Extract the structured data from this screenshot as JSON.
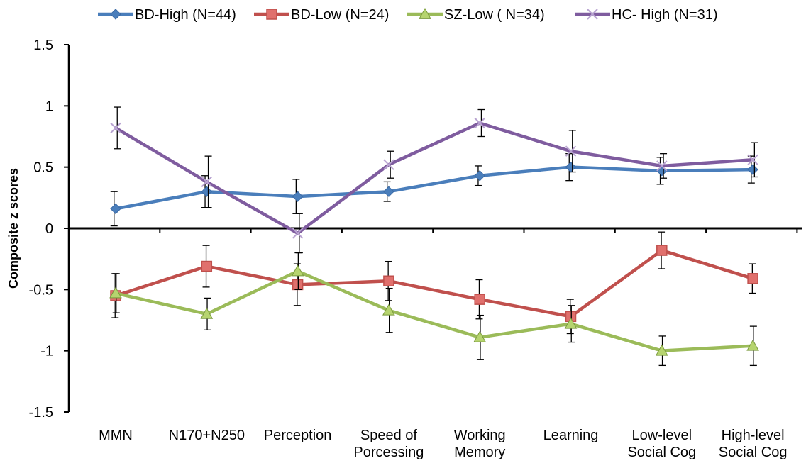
{
  "chart_data": {
    "type": "line",
    "title": "",
    "xlabel": "",
    "ylabel": "Composite z scores",
    "ylim": [
      -1.5,
      1.5
    ],
    "yticks": [
      "1.5",
      "1",
      "0.5",
      "0",
      "-0.5",
      "-1",
      "-1.5"
    ],
    "ytick_values": [
      1.5,
      1,
      0.5,
      0,
      -0.5,
      -1,
      -1.5
    ],
    "grid": false,
    "legend_position": "top",
    "categories": [
      [
        "MMN"
      ],
      [
        "N170+N250"
      ],
      [
        "Perception"
      ],
      [
        "Speed of",
        "Porcessing"
      ],
      [
        "Working",
        "Memory"
      ],
      [
        "Learning"
      ],
      [
        "Low-level",
        "Social Cog"
      ],
      [
        "High-level",
        "Social Cog"
      ]
    ],
    "series": [
      {
        "name": "BD-High (N=44)",
        "color": "#4a7ebb",
        "marker": "diamond",
        "values": [
          0.16,
          0.3,
          0.26,
          0.3,
          0.43,
          0.5,
          0.47,
          0.48
        ],
        "err": [
          0.14,
          0.13,
          0.14,
          0.08,
          0.08,
          0.11,
          0.11,
          0.11
        ]
      },
      {
        "name": "BD-Low (N=24)",
        "color": "#c0504d",
        "marker": "square",
        "values": [
          -0.55,
          -0.31,
          -0.46,
          -0.43,
          -0.58,
          -0.72,
          -0.18,
          -0.41
        ],
        "err": [
          0.18,
          0.17,
          0.17,
          0.16,
          0.16,
          0.14,
          0.15,
          0.12
        ]
      },
      {
        "name": "SZ-Low ( N=34)",
        "color": "#9bbb59",
        "marker": "triangle",
        "values": [
          -0.53,
          -0.7,
          -0.35,
          -0.67,
          -0.89,
          -0.78,
          -1.0,
          -0.96
        ],
        "err": [
          0.16,
          0.13,
          0.15,
          0.18,
          0.18,
          0.15,
          0.12,
          0.16
        ]
      },
      {
        "name": "HC- High (N=31)",
        "color": "#7f5c9f",
        "marker": "x",
        "values": [
          0.82,
          0.38,
          -0.04,
          0.52,
          0.86,
          0.63,
          0.51,
          0.56
        ],
        "err": [
          0.17,
          0.21,
          0.16,
          0.11,
          0.11,
          0.17,
          0.1,
          0.14
        ]
      }
    ]
  }
}
